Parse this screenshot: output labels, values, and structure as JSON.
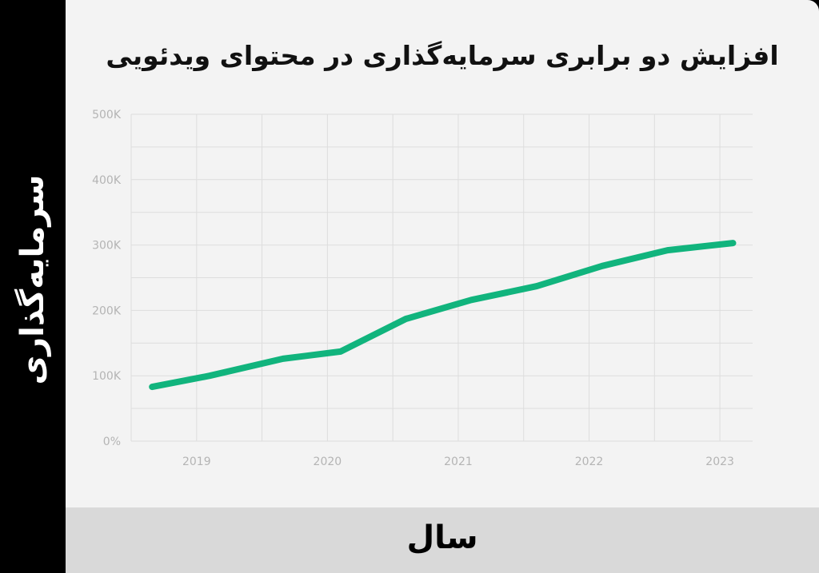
{
  "chart_data": {
    "type": "line",
    "title": "افزایش دو برابری سرمایه‌گذاری در محتوای ویدئویی",
    "xlabel": "سال",
    "ylabel": "سرمایه‌گذاری",
    "x_ticks": [
      "2019",
      "2020",
      "2021",
      "2022",
      "2023"
    ],
    "y_ticks": [
      "0%",
      "100K",
      "200K",
      "300K",
      "400K",
      "500K"
    ],
    "ylim": [
      0,
      500000
    ],
    "xlim": [
      2018.5,
      2023.25
    ],
    "grid": true,
    "legend": "none",
    "series": [
      {
        "color": "#11b47d",
        "points": [
          {
            "x": 2018.66,
            "y": 83000
          },
          {
            "x": 2019.1,
            "y": 100000
          },
          {
            "x": 2019.66,
            "y": 126000
          },
          {
            "x": 2020.1,
            "y": 137000
          },
          {
            "x": 2020.6,
            "y": 187000
          },
          {
            "x": 2021.1,
            "y": 216000
          },
          {
            "x": 2021.6,
            "y": 237000
          },
          {
            "x": 2022.1,
            "y": 268000
          },
          {
            "x": 2022.6,
            "y": 292000
          },
          {
            "x": 2023.1,
            "y": 303000
          }
        ]
      }
    ]
  },
  "colors": {
    "line": "#11b47d",
    "grid": "#dddddd",
    "tick_text": "#b4b4b4",
    "background": "#f3f3f3",
    "x_band": "#d9d9d9",
    "y_band": "#000000"
  }
}
